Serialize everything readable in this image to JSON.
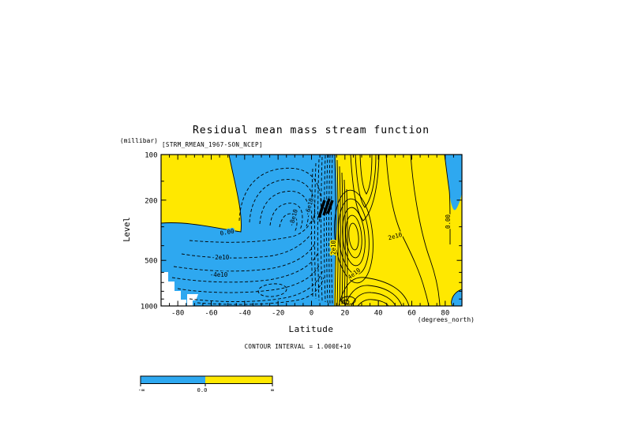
{
  "window": {
    "background": "#ffffff"
  },
  "chart_data": {
    "type": "contour",
    "title": "Residual mean mass stream function",
    "dataset_id": "[STRM_RMEAN_1967-SON_NCEP]",
    "contour_interval_label": "CONTOUR INTERVAL = 1.000E+10",
    "x_axis": {
      "title": "Latitude",
      "unit": "(degrees_north)",
      "range_deg": [
        -90,
        90
      ],
      "tick_labels": [
        "-80",
        "-60",
        "-40",
        "-20",
        "0",
        "20",
        "40",
        "60",
        "80"
      ],
      "minor_tick_step_deg": 5
    },
    "y_axis": {
      "title": "Level",
      "unit": "(millibar)",
      "scale": "log",
      "inverted": true,
      "range_mb": [
        100,
        1000
      ],
      "tick_labels": [
        "100",
        "200",
        "500",
        "1000"
      ],
      "minor_ticks_mb": [
        150,
        300,
        400,
        600,
        700,
        800,
        900
      ]
    },
    "fills": {
      "negative_color": "#2ea8f0",
      "positive_color": "#ffe800",
      "missing_color": "#ffffff",
      "negative_meaning": "stream function < 0",
      "positive_meaning": "stream function > 0"
    },
    "line_styles": {
      "negative_contours": "dashed",
      "positive_contours": "solid"
    },
    "contour_label_items": [
      {
        "text": "0.00"
      },
      {
        "text": "-2e10"
      },
      {
        "text": "-4e10"
      },
      {
        "text": "-6e10"
      },
      {
        "text": "-8e10"
      },
      {
        "text": "2e10"
      },
      {
        "text": "2e10"
      },
      {
        "text": "4e10"
      },
      {
        "text": "0.00"
      }
    ],
    "cells": [
      {
        "sign": "negative",
        "style": "dashed",
        "approx_center": "0-15N, 200-400 mb",
        "approx_extreme": "< -1e11 in tight gradient near 10N"
      },
      {
        "sign": "positive",
        "style": "solid",
        "approx_center": "~25N, 300 mb",
        "approx_extreme": "> 8e10"
      }
    ],
    "colorbar": {
      "tick_labels": [
        "-∞",
        "0.0",
        "∞"
      ],
      "segments": [
        {
          "color": "#2ea8f0",
          "range": "-∞ to 0.0"
        },
        {
          "color": "#ffe800",
          "range": "0.0 to ∞"
        }
      ]
    }
  }
}
